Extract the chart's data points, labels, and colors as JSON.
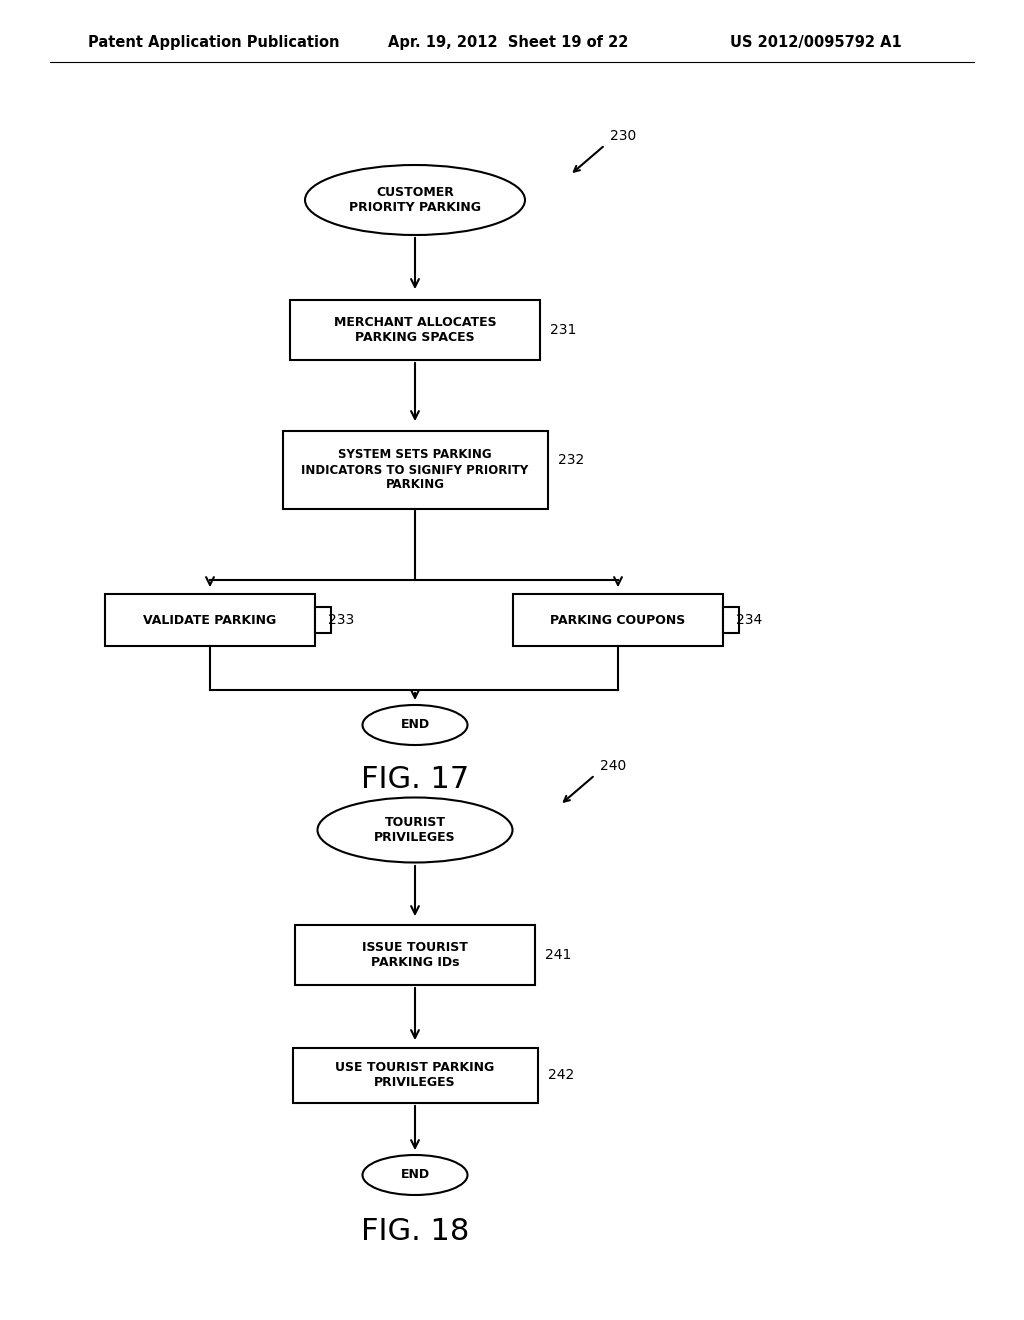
{
  "header_left": "Patent Application Publication",
  "header_mid": "Apr. 19, 2012  Sheet 19 of 22",
  "header_right": "US 2012/0095792 A1",
  "fig17_title": "FIG. 17",
  "fig18_title": "FIG. 18",
  "bg_color": "#ffffff",
  "line_color": "#000000",
  "text_color": "#000000",
  "fig17": {
    "label": "230",
    "start_text": "CUSTOMER\nPRIORITY PARKING",
    "box231_text": "MERCHANT ALLOCATES\nPARKING SPACES",
    "box231_label": "231",
    "box232_text": "SYSTEM SETS PARKING\nINDICATORS TO SIGNIFY PRIORITY\nPARKING",
    "box232_label": "232",
    "box233_text": "VALIDATE PARKING",
    "box233_label": "233",
    "box234_text": "PARKING COUPONS",
    "box234_label": "234",
    "end_text": "END"
  },
  "fig18": {
    "label": "240",
    "start_text": "TOURIST\nPRIVILEGES",
    "box241_text": "ISSUE TOURIST\nPARKING IDs",
    "box241_label": "241",
    "box242_text": "USE TOURIST PARKING\nPRIVILEGES",
    "box242_label": "242",
    "end_text": "END"
  }
}
